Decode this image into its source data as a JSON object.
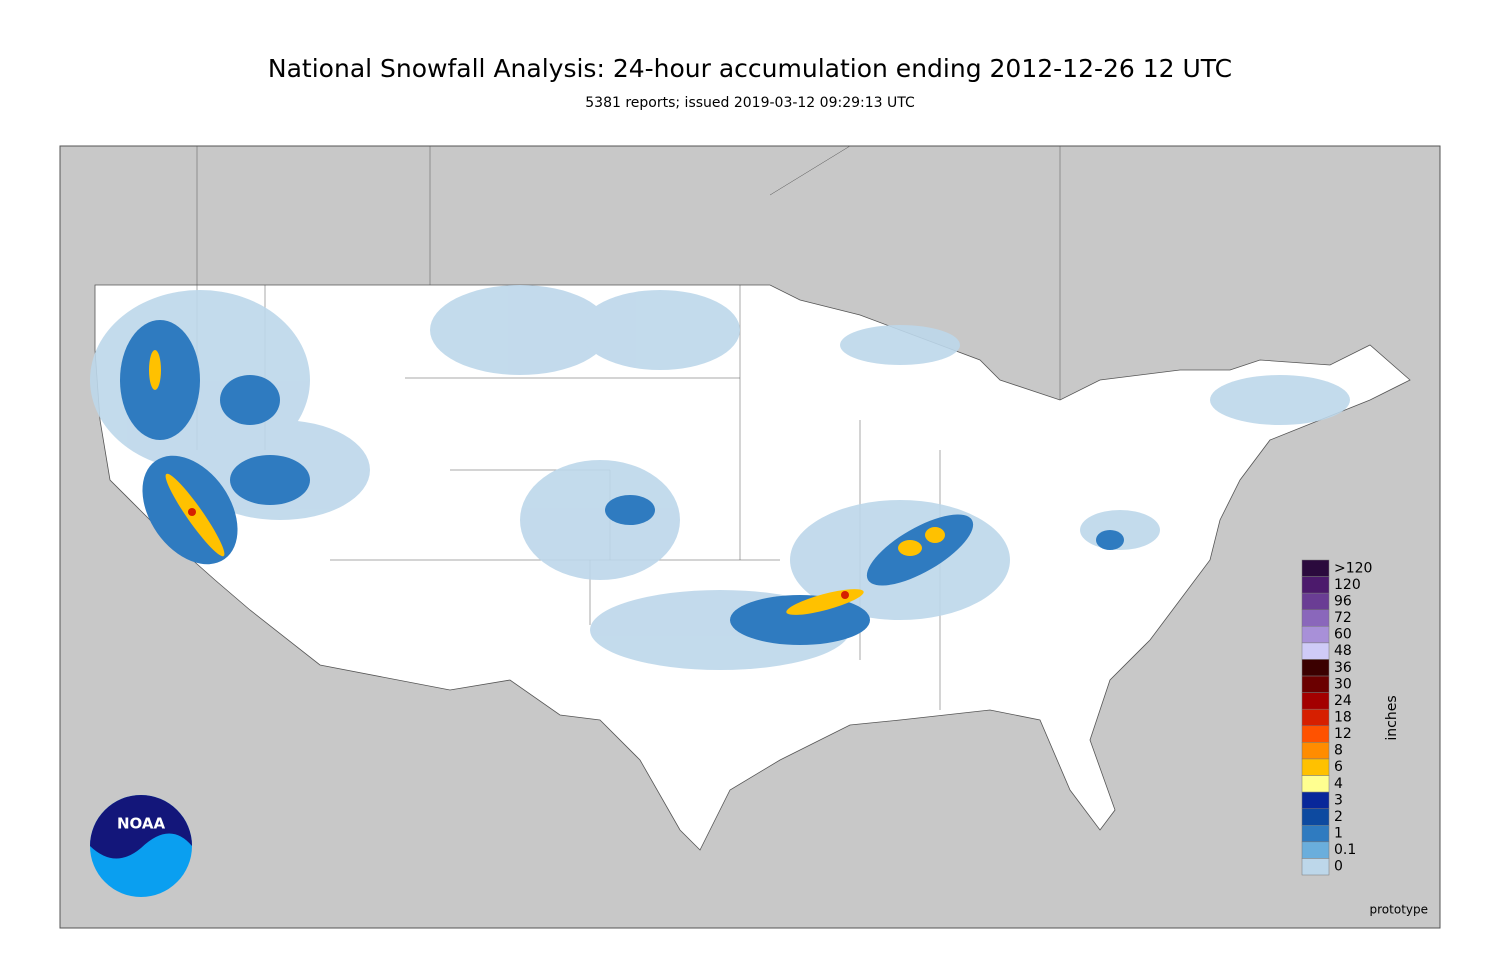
{
  "header": {
    "title": "National Snowfall Analysis: 24-hour accumulation ending 2012-12-26 12 UTC",
    "subtitle": "5381 reports; issued 2019-03-12 09:29:13 UTC"
  },
  "legend": {
    "unit": "inches",
    "items": [
      {
        "label": ">120",
        "color": "#2b0a3d"
      },
      {
        "label": "120",
        "color": "#4c1a6c"
      },
      {
        "label": "96",
        "color": "#6a3d94"
      },
      {
        "label": "72",
        "color": "#8a67bb"
      },
      {
        "label": "60",
        "color": "#a890d8"
      },
      {
        "label": "48",
        "color": "#cfcbf7"
      },
      {
        "label": "36",
        "color": "#3b0000"
      },
      {
        "label": "30",
        "color": "#6b0000"
      },
      {
        "label": "24",
        "color": "#a30000"
      },
      {
        "label": "18",
        "color": "#d61f00"
      },
      {
        "label": "12",
        "color": "#ff5200"
      },
      {
        "label": "8",
        "color": "#ff8c00"
      },
      {
        "label": "6",
        "color": "#ffc100"
      },
      {
        "label": "4",
        "color": "#ffff90"
      },
      {
        "label": "3",
        "color": "#08279a"
      },
      {
        "label": "2",
        "color": "#0d4aa0"
      },
      {
        "label": "1",
        "color": "#2f7bc0"
      },
      {
        "label": "0.1",
        "color": "#6aaedc"
      },
      {
        "label": "0",
        "color": "#bdd7ea"
      }
    ]
  },
  "footer": {
    "note": "prototype",
    "logo": "NOAA"
  }
}
